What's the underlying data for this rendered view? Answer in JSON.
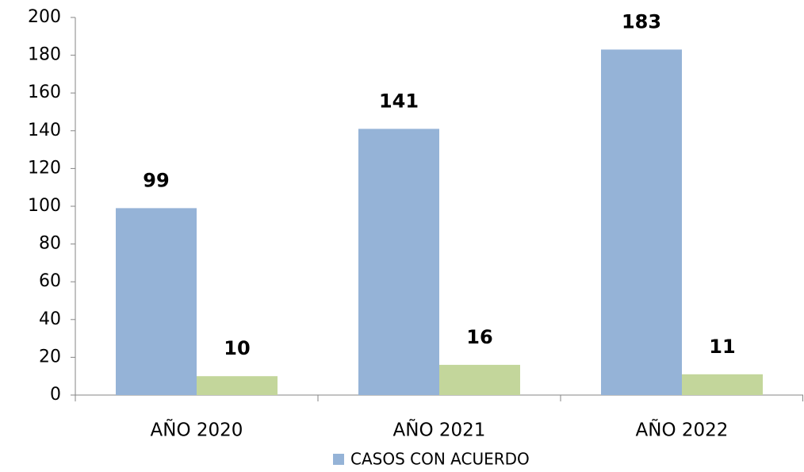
{
  "chart_data": {
    "type": "bar",
    "categories": [
      "AÑO 2020",
      "AÑO 2021",
      "AÑO 2022"
    ],
    "series": [
      {
        "name": "CASOS CON ACUERDO",
        "color": "#95b3d7",
        "values": [
          99,
          141,
          183
        ]
      },
      {
        "color": "#c3d69b",
        "values": [
          10,
          16,
          11
        ]
      }
    ],
    "ylim": [
      0,
      200
    ],
    "yticks": [
      0,
      20,
      40,
      60,
      80,
      100,
      120,
      140,
      160,
      180,
      200
    ],
    "grid": false
  }
}
